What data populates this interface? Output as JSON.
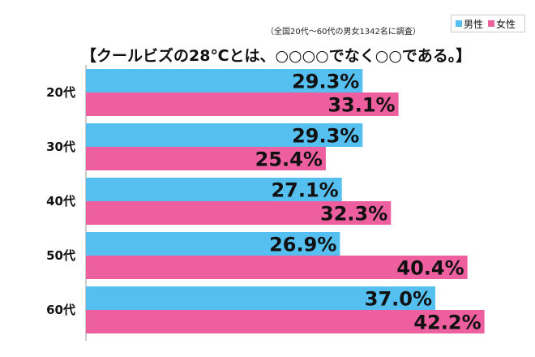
{
  "note": "（全国20代〜60代の男女1342名に調査）",
  "legend": [
    {
      "name": "男性",
      "color": "#55c0f0"
    },
    {
      "name": "女性",
      "color": "#ee5fa0"
    }
  ],
  "title": "【クールビズの28℃とは、○○○○でなく○○である。】",
  "chart_data": {
    "type": "bar",
    "orientation": "horizontal",
    "categories": [
      "20代",
      "30代",
      "40代",
      "50代",
      "60代"
    ],
    "series": [
      {
        "name": "男性",
        "color": "#55c0f0",
        "values": [
          29.3,
          29.3,
          27.1,
          26.9,
          37.0
        ],
        "labels": [
          "29.3%",
          "29.3%",
          "27.1%",
          "26.9%",
          "37.0%"
        ]
      },
      {
        "name": "女性",
        "color": "#ee5fa0",
        "values": [
          33.1,
          25.4,
          32.3,
          40.4,
          42.2
        ],
        "labels": [
          "33.1%",
          "25.4%",
          "32.3%",
          "40.4%",
          "42.2%"
        ]
      }
    ],
    "xlim": [
      0,
      100
    ],
    "grid": false,
    "legend_position": "top-right"
  }
}
